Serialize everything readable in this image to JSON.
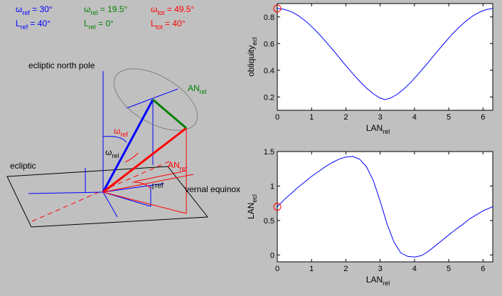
{
  "params": {
    "omega_ref": {
      "sym": "ω",
      "sub": "ref",
      "value": " = 30°",
      "color": "#0000ff"
    },
    "L_ref": {
      "sym": "L",
      "sub": "ref",
      "value": " = 40°",
      "color": "#0000ff"
    },
    "omega_rel": {
      "sym": "ω",
      "sub": "rel",
      "value": " = 19.5°",
      "color": "#008000"
    },
    "L_rel": {
      "sym": "L",
      "sub": "rel",
      "value": " = 0°",
      "color": "#008000"
    },
    "omega_tot": {
      "sym": "ω",
      "sub": "tot",
      "value": " = 49.5°",
      "color": "#ff0000"
    },
    "L_tot": {
      "sym": "L",
      "sub": "tot",
      "value": " = 40°",
      "color": "#ff0000"
    }
  },
  "diagram": {
    "ecliptic_north_pole": "ecliptic north pole",
    "ecliptic": "ecliptic",
    "vernal_equinox": "vernal equinox",
    "an_rel": {
      "main": "AN",
      "sub": "rel"
    },
    "an_ref": {
      "main": "AN",
      "sub": "ref"
    },
    "omega_ref_upper": {
      "main": "ω",
      "sub": "ref"
    },
    "omega_rel_lower": {
      "main": "ω",
      "sub": "rel"
    },
    "lambda_ref_sub": "ref",
    "colors": {
      "blue": "#0000ff",
      "red": "#ff0000",
      "green": "#008000",
      "gray": "#808080",
      "black": "#000000"
    }
  },
  "chart_data": [
    {
      "type": "line",
      "xlabel": {
        "main": "LAN",
        "sub": "rel"
      },
      "ylabel": {
        "main": "obliquity",
        "sub": "ecl"
      },
      "xlim": [
        0,
        6.2832
      ],
      "ylim": [
        0.1,
        0.9
      ],
      "xticks": [
        0,
        1,
        2,
        3,
        4,
        5,
        6
      ],
      "yticks": [
        0.2,
        0.4,
        0.6,
        0.8
      ],
      "yticklabels": [
        "0.2",
        "0.4",
        "0.6",
        "0.8"
      ],
      "series": [
        {
          "color": "#0000ff",
          "x": [
            0,
            0.2,
            0.4,
            0.6,
            0.8,
            1.0,
            1.2,
            1.4,
            1.6,
            1.8,
            2.0,
            2.2,
            2.4,
            2.6,
            2.8,
            3.0,
            3.1416,
            3.3,
            3.5,
            3.7,
            3.9,
            4.1,
            4.3,
            4.5,
            4.7,
            4.9,
            5.1,
            5.3,
            5.5,
            5.7,
            5.9,
            6.1,
            6.2832
          ],
          "y": [
            0.863,
            0.857,
            0.84,
            0.812,
            0.774,
            0.728,
            0.676,
            0.619,
            0.559,
            0.497,
            0.435,
            0.375,
            0.318,
            0.267,
            0.223,
            0.191,
            0.18,
            0.191,
            0.22,
            0.262,
            0.312,
            0.369,
            0.428,
            0.49,
            0.552,
            0.612,
            0.67,
            0.722,
            0.768,
            0.807,
            0.836,
            0.855,
            0.863
          ]
        }
      ],
      "marker": {
        "x": 0,
        "y": 0.863,
        "color": "#ff0000"
      }
    },
    {
      "type": "line",
      "xlabel": {
        "main": "LAN",
        "sub": "rel"
      },
      "ylabel": {
        "main": "LAN",
        "sub": "ecl"
      },
      "xlim": [
        0,
        6.2832
      ],
      "ylim": [
        -0.1,
        1.5
      ],
      "xticks": [
        0,
        1,
        2,
        3,
        4,
        5,
        6
      ],
      "yticks": [
        0,
        0.5,
        1,
        1.5
      ],
      "yticklabels": [
        "0",
        "0.5",
        "1",
        "1.5"
      ],
      "series": [
        {
          "color": "#0000ff",
          "x": [
            0,
            0.2,
            0.4,
            0.6,
            0.8,
            1.0,
            1.2,
            1.4,
            1.6,
            1.8,
            2.0,
            2.2,
            2.4,
            2.6,
            2.8,
            3.0,
            3.2,
            3.4,
            3.6,
            3.8,
            4.0,
            4.2,
            4.4,
            4.6,
            4.8,
            5.0,
            5.2,
            5.4,
            5.6,
            5.8,
            6.0,
            6.2832
          ],
          "y": [
            0.7,
            0.8,
            0.89,
            0.98,
            1.06,
            1.14,
            1.21,
            1.28,
            1.34,
            1.39,
            1.42,
            1.43,
            1.39,
            1.28,
            1.08,
            0.78,
            0.45,
            0.19,
            0.03,
            -0.02,
            -0.03,
            -0.01,
            0.05,
            0.13,
            0.21,
            0.29,
            0.37,
            0.44,
            0.52,
            0.58,
            0.64,
            0.7
          ]
        }
      ],
      "marker": {
        "x": 0,
        "y": 0.7,
        "color": "#ff0000"
      }
    }
  ]
}
